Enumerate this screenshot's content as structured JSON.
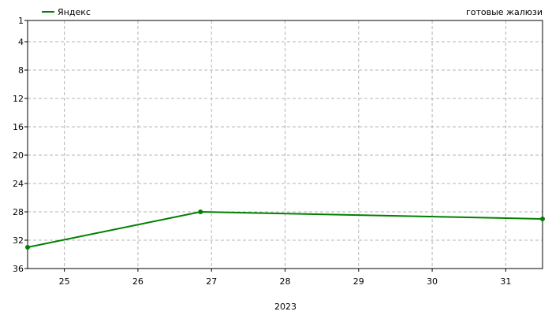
{
  "chart_data": {
    "type": "line",
    "title": "готовые жалюзи",
    "xlabel": "2023",
    "ylabel": "",
    "y_inverted": true,
    "ylim": [
      1,
      36
    ],
    "xlim": [
      24.5,
      31.5
    ],
    "y_ticks": [
      1,
      4,
      8,
      12,
      16,
      20,
      24,
      28,
      32,
      36
    ],
    "x_ticks": [
      25,
      26,
      27,
      28,
      29,
      30,
      31
    ],
    "grid": true,
    "legend_position": "top-left",
    "series": [
      {
        "name": "Яндекс",
        "color": "#008000",
        "points": [
          {
            "x": 24.5,
            "y": 33
          },
          {
            "x": 26.85,
            "y": 28
          },
          {
            "x": 31.5,
            "y": 29
          }
        ]
      }
    ]
  }
}
